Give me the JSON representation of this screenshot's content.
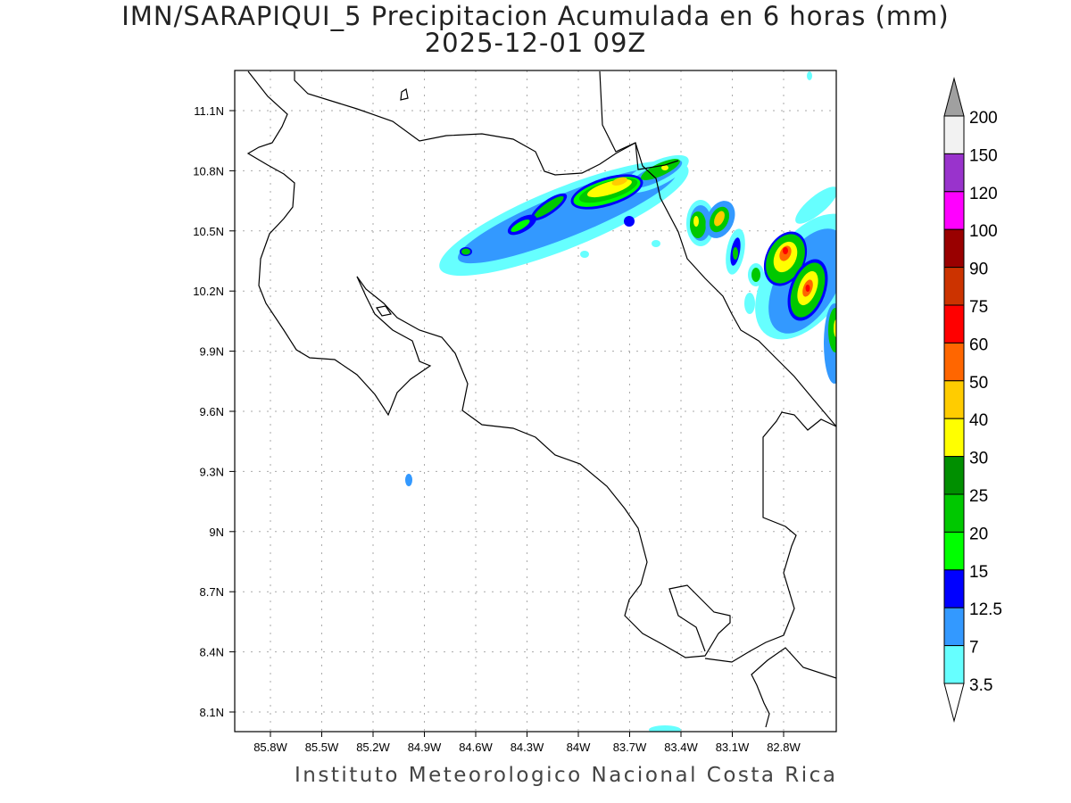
{
  "title": "IMN/SARAPIQUI_5 Precipitacion Acumulada en 6 horas (mm)",
  "subtitle": "2025-12-01 09Z",
  "footer": "Instituto Meteorologico Nacional Costa Rica",
  "map": {
    "lon_labels": [
      "85.8W",
      "85.5W",
      "85.2W",
      "84.9W",
      "84.6W",
      "84.3W",
      "84W",
      "83.7W",
      "83.4W",
      "83.1W",
      "82.8W"
    ],
    "lat_labels": [
      "11.1N",
      "10.8N",
      "10.5N",
      "10.2N",
      "9.9N",
      "9.6N",
      "9.3N",
      "9N",
      "8.7N",
      "8.4N",
      "8.1N"
    ]
  },
  "legend": {
    "labels": [
      "200",
      "150",
      "120",
      "100",
      "90",
      "75",
      "60",
      "50",
      "40",
      "30",
      "25",
      "20",
      "15",
      "12.5",
      "7",
      "3.5"
    ],
    "colors": [
      "#f2f2f2",
      "#9933cc",
      "#ff00ff",
      "#990000",
      "#cc3300",
      "#ff0000",
      "#ff6600",
      "#ffcc00",
      "#ffff00",
      "#008f00",
      "#00c800",
      "#00ff00",
      "#0000ff",
      "#3399ff",
      "#66ffff"
    ],
    "over_color": "#a0a0a0",
    "under_color": "#ffffff"
  }
}
